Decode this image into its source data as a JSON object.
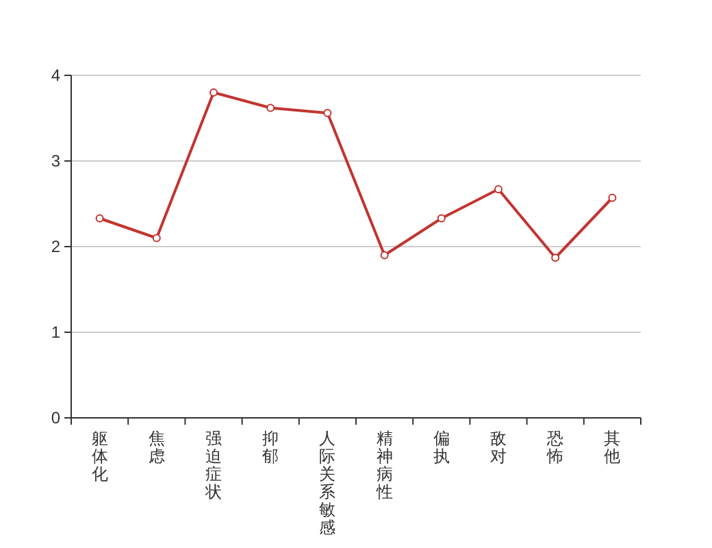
{
  "chart_data": {
    "type": "line",
    "categories": [
      "躯体化",
      "焦虑",
      "强迫症状",
      "抑郁",
      "人际关系敏感",
      "精神病性",
      "偏执",
      "敌对",
      "恐怖",
      "其他"
    ],
    "series": [
      {
        "color": "#c23531",
        "values": [
          2.33,
          2.1,
          3.8,
          3.62,
          3.56,
          1.9,
          2.33,
          2.67,
          1.87,
          2.57
        ]
      }
    ],
    "ylim": [
      0,
      4
    ],
    "yticks": [
      0,
      1,
      2,
      3,
      4
    ],
    "grid": "y",
    "marker": "circle",
    "line_style": "solid"
  }
}
